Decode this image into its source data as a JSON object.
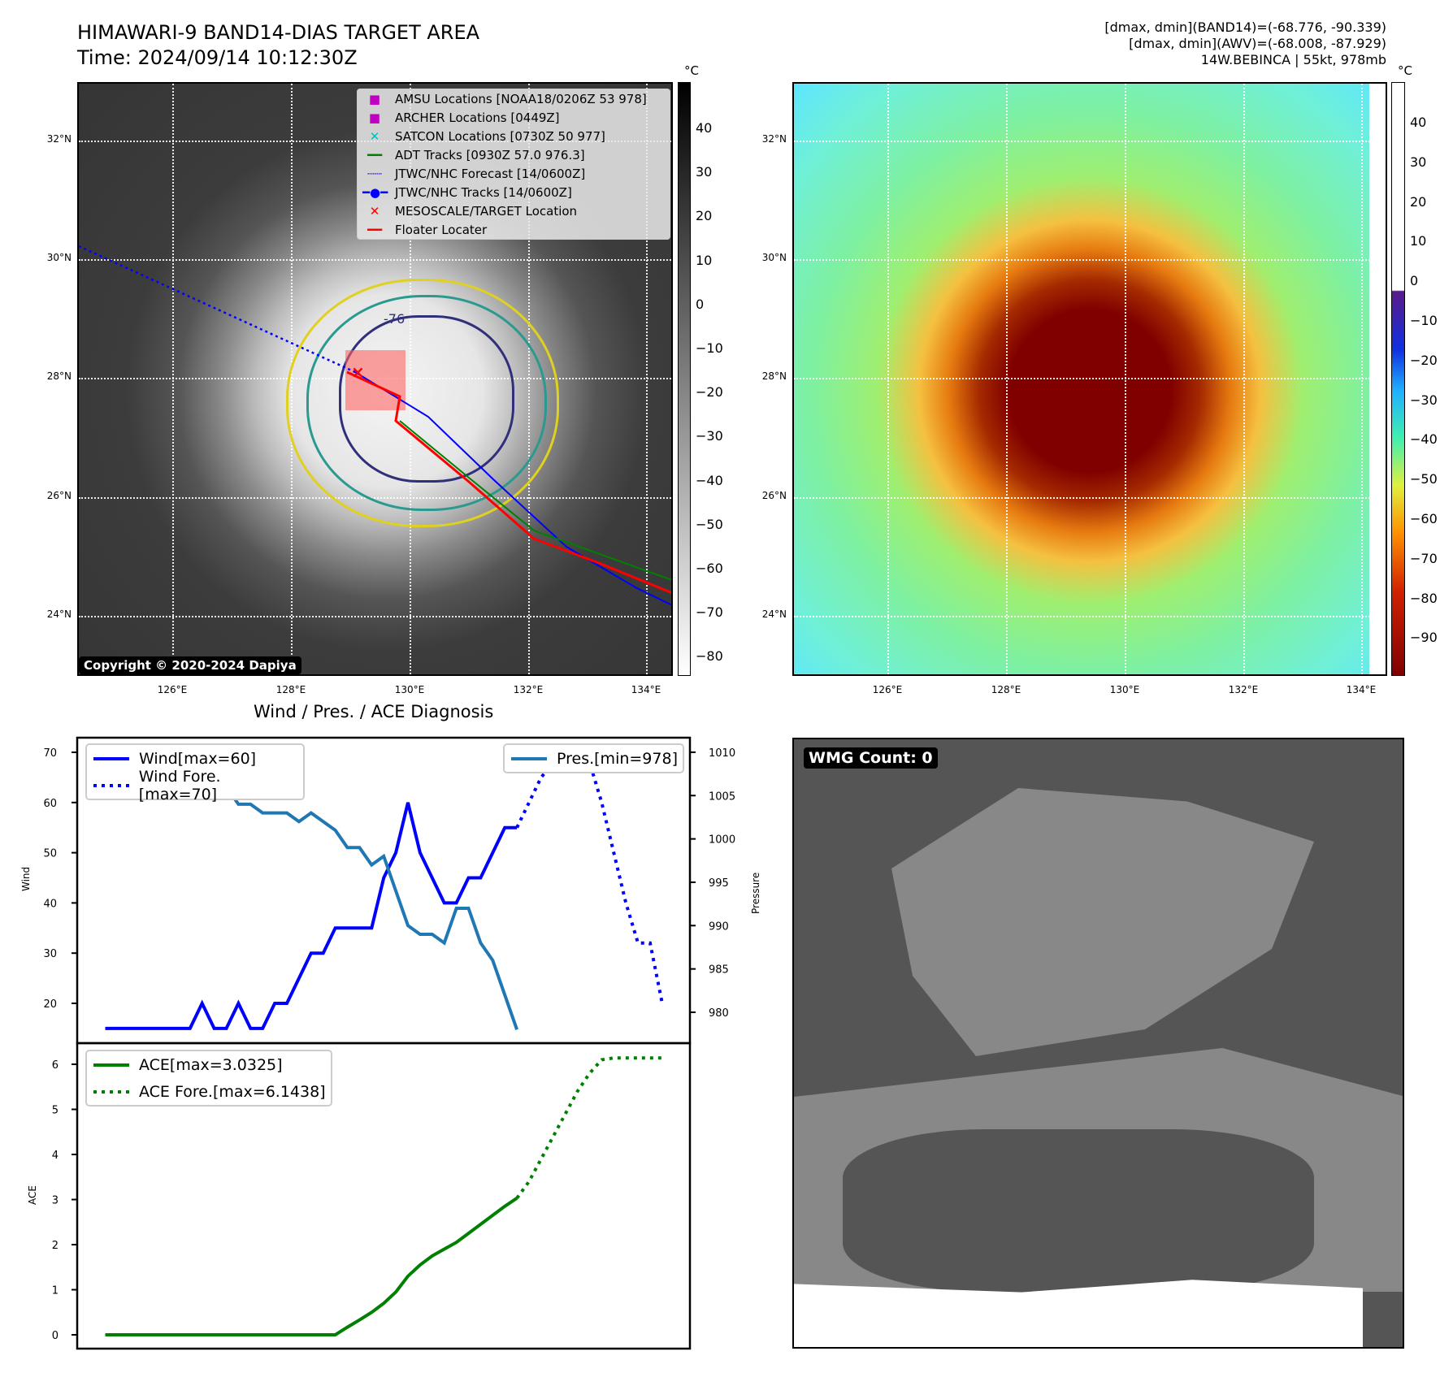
{
  "header": {
    "title": "HIMAWARI-9 BAND14-DIAS TARGET AREA",
    "time": "Time: 2024/09/14 10:12:30Z",
    "stats": [
      "[dmax, dmin](BAND14)=(-68.776, -90.339)",
      "[dmax, dmin](AWV)=(-68.008, -87.929)",
      "14W.BEBINCA | 55kt, 978mb"
    ]
  },
  "maps": {
    "lon_ticks": [
      "126°E",
      "128°E",
      "130°E",
      "132°E",
      "134°E"
    ],
    "lat_ticks": [
      "32°N",
      "30°N",
      "28°N",
      "26°N",
      "24°N"
    ],
    "unit": "°C",
    "cb1_ticks": [
      "40",
      "30",
      "20",
      "10",
      "0",
      "−10",
      "−20",
      "−30",
      "−40",
      "−50",
      "−60",
      "−70",
      "−80"
    ],
    "cb2_ticks": [
      "40",
      "30",
      "20",
      "10",
      "0",
      "−10",
      "−20",
      "−30",
      "−40",
      "−50",
      "−60",
      "−70",
      "−80",
      "−90"
    ],
    "copyright": "Copyright © 2020-2024 Dapiya",
    "contour_label": "-76",
    "legend": [
      {
        "label": "AMSU Locations [NOAA18/0206Z 53 978]",
        "marker": "square",
        "color": "#c000c0"
      },
      {
        "label": "ARCHER Locations [0449Z]",
        "marker": "square",
        "color": "#c000c0"
      },
      {
        "label": "SATCON Locations [0730Z 50 977]",
        "marker": "x",
        "color": "#00c0c0"
      },
      {
        "label": "ADT Tracks [0930Z 57.0 976.3]",
        "marker": "line",
        "color": "#008000"
      },
      {
        "label": "JTWC/NHC Forecast [14/0600Z]",
        "marker": "dotted",
        "color": "#0000ff"
      },
      {
        "label": "JTWC/NHC Tracks [14/0600Z]",
        "marker": "line-dot",
        "color": "#0000ff"
      },
      {
        "label": "MESOSCALE/TARGET Location",
        "marker": "x",
        "color": "#ff0000"
      },
      {
        "label": "Floater Locater",
        "marker": "line",
        "color": "#ff0000"
      }
    ],
    "wmg_label": "WMG Count: 0"
  },
  "chart_data": [
    {
      "type": "line",
      "title": "Wind / Pres. / ACE Diagnosis",
      "ylabel": "Wind",
      "y2label": "Pressure",
      "ylim": [
        12,
        73
      ],
      "y2lim": [
        976,
        1012
      ],
      "yticks": [
        20,
        30,
        40,
        50,
        60,
        70
      ],
      "y2ticks": [
        980,
        985,
        990,
        995,
        1000,
        1005,
        1010
      ],
      "series": [
        {
          "name": "Wind[max=60]",
          "axis": "left",
          "style": "solid",
          "color": "#0000ff",
          "x0": 0,
          "values": [
            15,
            15,
            15,
            15,
            15,
            15,
            15,
            15,
            20,
            15,
            15,
            20,
            15,
            15,
            20,
            20,
            25,
            30,
            30,
            35,
            35,
            35,
            35,
            45,
            50,
            60,
            50,
            45,
            40,
            40,
            45,
            45,
            50,
            55,
            55
          ]
        },
        {
          "name": "Wind Fore.[max=70]",
          "axis": "left",
          "style": "dotted",
          "color": "#0000ff",
          "x0": 34,
          "values": [
            55,
            60,
            65,
            68,
            70,
            70,
            68,
            60,
            50,
            40,
            32,
            32,
            20
          ]
        },
        {
          "name": "Pres.[min=978]",
          "axis": "right",
          "style": "solid",
          "color": "#1f77b4",
          "x0": 0,
          "values": [
            1010,
            1008,
            1008,
            1008,
            1008,
            1009,
            1009,
            1007.5,
            1007.5,
            1006,
            1006,
            1004,
            1004,
            1003,
            1003,
            1003,
            1002,
            1003,
            1002,
            1001,
            999,
            999,
            997,
            998,
            994,
            990,
            989,
            989,
            988,
            992,
            992,
            988,
            986,
            982,
            978
          ]
        }
      ]
    },
    {
      "type": "line",
      "ylabel": "ACE",
      "ylim": [
        -0.3,
        6.5
      ],
      "yticks": [
        0,
        1,
        2,
        3,
        4,
        5,
        6
      ],
      "series": [
        {
          "name": "ACE[max=3.0325]",
          "style": "solid",
          "color": "#008000",
          "x0": 0,
          "values": [
            0,
            0,
            0,
            0,
            0,
            0,
            0,
            0,
            0,
            0,
            0,
            0,
            0,
            0,
            0,
            0,
            0,
            0,
            0,
            0,
            0.17,
            0.33,
            0.5,
            0.7,
            0.95,
            1.3,
            1.55,
            1.75,
            1.9,
            2.05,
            2.25,
            2.45,
            2.65,
            2.85,
            3.03
          ]
        },
        {
          "name": "ACE Fore.[max=6.1438]",
          "style": "dotted",
          "color": "#008000",
          "x0": 34,
          "values": [
            3.03,
            3.4,
            3.9,
            4.4,
            4.9,
            5.4,
            5.8,
            6.1,
            6.14,
            6.14,
            6.14,
            6.14,
            6.14
          ]
        }
      ]
    }
  ]
}
